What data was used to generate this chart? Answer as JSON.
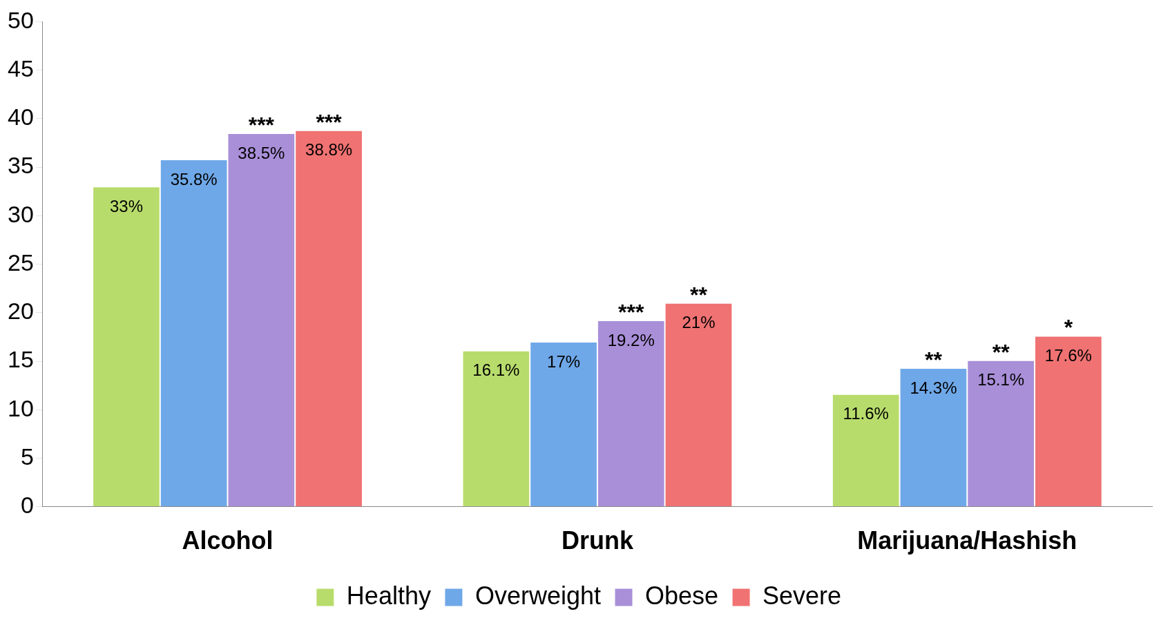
{
  "chart_data": {
    "type": "bar",
    "categories": [
      "Alcohol",
      "Drunk",
      "Marijuana/Hashish"
    ],
    "series": [
      {
        "name": "Healthy",
        "color": "#b8dc6c",
        "values": [
          33,
          16.1,
          11.6
        ],
        "value_labels": [
          "33%",
          "16.1%",
          "11.6%"
        ]
      },
      {
        "name": "Overweight",
        "color": "#6fa8e8",
        "values": [
          35.8,
          17,
          14.3
        ],
        "value_labels": [
          "35.8%",
          "17%",
          "14.3%"
        ]
      },
      {
        "name": "Obese",
        "color": "#a98fd8",
        "values": [
          38.5,
          19.2,
          15.1
        ],
        "value_labels": [
          "38.5%",
          "19.2%",
          "15.1%"
        ]
      },
      {
        "name": "Severe",
        "color": "#f07272",
        "values": [
          38.8,
          21,
          17.6
        ],
        "value_labels": [
          "38.8%",
          "21%",
          "17.6%"
        ]
      }
    ],
    "annotations": [
      {
        "text": "***",
        "x": "Alcohol",
        "y": 38.5
      },
      "***",
      {
        "text": "***",
        "x": "Drunk",
        "y": 19.2
      },
      "**",
      {
        "text": "**",
        "x": "Marijuana/Hashish",
        "y": 14.3
      },
      {
        "text": "**",
        "x": "Marijuana/Hashish",
        "y": 15.1
      },
      "*"
    ],
    "ylim": [
      0,
      50
    ],
    "yticks": [
      0,
      5,
      10,
      15,
      20,
      25,
      30,
      35,
      40,
      45,
      50
    ],
    "grid": false,
    "legend": "bottom"
  }
}
